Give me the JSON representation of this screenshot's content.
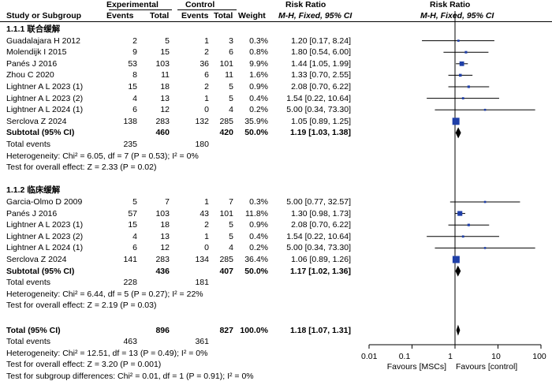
{
  "header": {
    "group1": "Experimental",
    "group2": "Control",
    "rr1": "Risk Ratio",
    "rr2": "Risk Ratio",
    "study": "Study or Subgroup",
    "events1": "Events",
    "total1": "Total",
    "events2": "Events",
    "total2": "Total",
    "weight": "Weight",
    "method1": "M-H, Fixed, 95% CI",
    "method2": "M-H, Fixed, 95% CI"
  },
  "subgroups": [
    {
      "title": "1.1.1 联合缓解",
      "studies": [
        {
          "name": "Guadalajara H 2012",
          "e1": "2",
          "n1": "5",
          "e2": "1",
          "n2": "3",
          "weight": "0.3%",
          "ci": "1.20 [0.17, 8.24]",
          "rr": 1.2,
          "lo": 0.17,
          "hi": 8.24,
          "w": 0.3
        },
        {
          "name": "Molendijk I 2015",
          "e1": "9",
          "n1": "15",
          "e2": "2",
          "n2": "6",
          "weight": "0.8%",
          "ci": "1.80 [0.54, 6.00]",
          "rr": 1.8,
          "lo": 0.54,
          "hi": 6.0,
          "w": 0.8
        },
        {
          "name": "Panés J 2016",
          "e1": "53",
          "n1": "103",
          "e2": "36",
          "n2": "101",
          "weight": "9.9%",
          "ci": "1.44 [1.05, 1.99]",
          "rr": 1.44,
          "lo": 1.05,
          "hi": 1.99,
          "w": 9.9
        },
        {
          "name": "Zhou C  2020",
          "e1": "8",
          "n1": "11",
          "e2": "6",
          "n2": "11",
          "weight": "1.6%",
          "ci": "1.33 [0.70, 2.55]",
          "rr": 1.33,
          "lo": 0.7,
          "hi": 2.55,
          "w": 1.6
        },
        {
          "name": "Lightner A L 2023 (1)",
          "e1": "15",
          "n1": "18",
          "e2": "2",
          "n2": "5",
          "weight": "0.9%",
          "ci": "2.08 [0.70, 6.22]",
          "rr": 2.08,
          "lo": 0.7,
          "hi": 6.22,
          "w": 0.9
        },
        {
          "name": "Lightner A L 2023 (2)",
          "e1": "4",
          "n1": "13",
          "e2": "1",
          "n2": "5",
          "weight": "0.4%",
          "ci": "1.54 [0.22, 10.64]",
          "rr": 1.54,
          "lo": 0.22,
          "hi": 10.64,
          "w": 0.4
        },
        {
          "name": "Lightner A L 2024 (1)",
          "e1": "6",
          "n1": "12",
          "e2": "0",
          "n2": "4",
          "weight": "0.2%",
          "ci": "5.00 [0.34, 73.30]",
          "rr": 5.0,
          "lo": 0.34,
          "hi": 73.3,
          "w": 0.2
        },
        {
          "name": "Serclova Z 2024",
          "e1": "138",
          "n1": "283",
          "e2": "132",
          "n2": "285",
          "weight": "35.9%",
          "ci": "1.05 [0.89, 1.25]",
          "rr": 1.05,
          "lo": 0.89,
          "hi": 1.25,
          "w": 35.9
        }
      ],
      "subtotal": {
        "label": "Subtotal (95% CI)",
        "n1": "460",
        "n2": "420",
        "weight": "50.0%",
        "ci": "1.19 [1.03, 1.38]",
        "rr": 1.19,
        "lo": 1.03,
        "hi": 1.38
      },
      "total_events": {
        "label": "Total events",
        "e1": "235",
        "e2": "180"
      },
      "heterogeneity": "Heterogeneity: Chi² = 6.05, df = 7 (P = 0.53); I² = 0%",
      "overall": "Test for overall effect: Z = 2.33 (P = 0.02)"
    },
    {
      "title": "1.1.2 临床缓解",
      "studies": [
        {
          "name": "Garcia-Olmo D 2009",
          "e1": "5",
          "n1": "7",
          "e2": "1",
          "n2": "7",
          "weight": "0.3%",
          "ci": "5.00 [0.77, 32.57]",
          "rr": 5.0,
          "lo": 0.77,
          "hi": 32.57,
          "w": 0.3
        },
        {
          "name": "Panés J 2016",
          "e1": "57",
          "n1": "103",
          "e2": "43",
          "n2": "101",
          "weight": "11.8%",
          "ci": "1.30 [0.98, 1.73]",
          "rr": 1.3,
          "lo": 0.98,
          "hi": 1.73,
          "w": 11.8
        },
        {
          "name": "Lightner A L 2023 (1)",
          "e1": "15",
          "n1": "18",
          "e2": "2",
          "n2": "5",
          "weight": "0.9%",
          "ci": "2.08 [0.70, 6.22]",
          "rr": 2.08,
          "lo": 0.7,
          "hi": 6.22,
          "w": 0.9
        },
        {
          "name": "Lightner A L 2023 (2)",
          "e1": "4",
          "n1": "13",
          "e2": "1",
          "n2": "5",
          "weight": "0.4%",
          "ci": "1.54 [0.22, 10.64]",
          "rr": 1.54,
          "lo": 0.22,
          "hi": 10.64,
          "w": 0.4
        },
        {
          "name": "Lightner A L 2024 (1)",
          "e1": "6",
          "n1": "12",
          "e2": "0",
          "n2": "4",
          "weight": "0.2%",
          "ci": "5.00 [0.34, 73.30]",
          "rr": 5.0,
          "lo": 0.34,
          "hi": 73.3,
          "w": 0.2
        },
        {
          "name": "Serclova Z 2024",
          "e1": "141",
          "n1": "283",
          "e2": "134",
          "n2": "285",
          "weight": "36.4%",
          "ci": "1.06 [0.89, 1.26]",
          "rr": 1.06,
          "lo": 0.89,
          "hi": 1.26,
          "w": 36.4
        }
      ],
      "subtotal": {
        "label": "Subtotal (95% CI)",
        "n1": "436",
        "n2": "407",
        "weight": "50.0%",
        "ci": "1.17 [1.02, 1.36]",
        "rr": 1.17,
        "lo": 1.02,
        "hi": 1.36
      },
      "total_events": {
        "label": "Total events",
        "e1": "228",
        "e2": "181"
      },
      "heterogeneity": "Heterogeneity: Chi² = 6.44, df = 5 (P = 0.27); I² = 22%",
      "overall": "Test for overall effect: Z = 2.19 (P = 0.03)"
    }
  ],
  "total": {
    "label": "Total (95% CI)",
    "n1": "896",
    "n2": "827",
    "weight": "100.0%",
    "ci": "1.18 [1.07, 1.31]",
    "rr": 1.18,
    "lo": 1.07,
    "hi": 1.31
  },
  "total_events": {
    "label": "Total events",
    "e1": "463",
    "e2": "361"
  },
  "heterogeneity": "Heterogeneity: Chi² = 12.51, df = 13 (P = 0.49); I² = 0%",
  "overall": "Test for overall effect: Z = 3.20 (P = 0.001)",
  "subgroup_diff": "Test for subgroup differences: Chi² = 0.01, df = 1 (P = 0.91); I² = 0%",
  "axis": {
    "ticks": [
      "0.01",
      "0.1",
      "1",
      "10",
      "100"
    ],
    "favours_left": "Favours [MSCs]",
    "favours_right": "Favours [control]"
  },
  "chart_data": {
    "type": "forest",
    "scale": "log",
    "xlim": [
      0.01,
      100
    ],
    "reference_line": 1,
    "square_color": "#1f3fa8",
    "diamond_color": "#000000"
  }
}
